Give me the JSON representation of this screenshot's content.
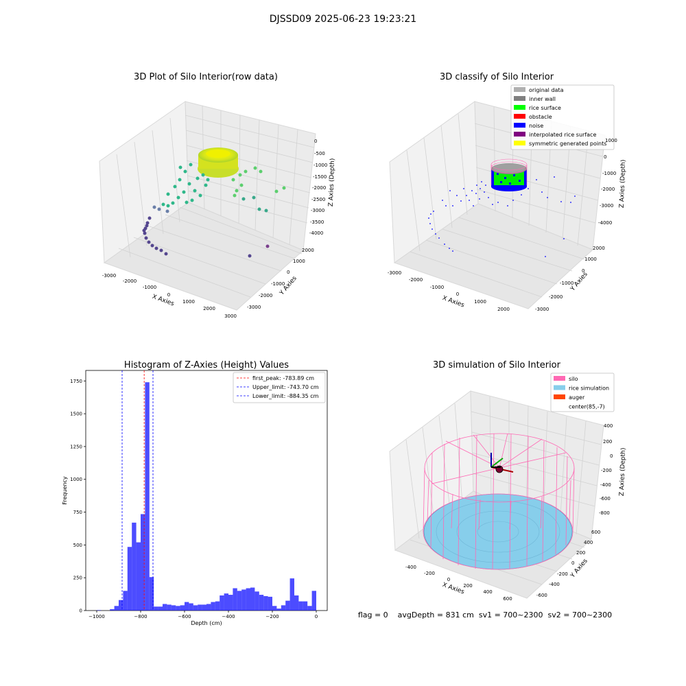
{
  "figure": {
    "suptitle": "DJSSD09 2025-06-23 19:23:21",
    "footer": "flag = 0    avgDepth = 831 cm  sv1 = 700~2300  sv2 = 700~2300"
  },
  "panels": {
    "raw": {
      "title": "3D Plot of Silo Interior(row data)",
      "xlabel": "X Axies",
      "ylabel": "Y Axies",
      "zlabel": "Z Axies (Depth)",
      "xticks": [
        "-3000",
        "-2000",
        "-1000",
        "0",
        "1000",
        "2000",
        "3000"
      ],
      "yticks": [
        "-3000",
        "-2000",
        "-1000",
        "0",
        "1000",
        "2000"
      ],
      "zticks": [
        "0",
        "-500",
        "-1000",
        "-1500",
        "-2000",
        "-2500",
        "-3000",
        "-3500",
        "-4000"
      ]
    },
    "classify": {
      "title": "3D classify of Silo Interior",
      "xlabel": "X Axies",
      "ylabel": "Y Axies",
      "zlabel": "Z Axies (Depth)",
      "xticks": [
        "-3000",
        "-2000",
        "-1000",
        "0",
        "1000",
        "2000"
      ],
      "yticks": [
        "-3000",
        "-2000",
        "-1000",
        "0",
        "1000",
        "2000"
      ],
      "zticks": [
        "1000",
        "0",
        "-1000",
        "-2000",
        "-3000",
        "-4000"
      ],
      "legend": [
        {
          "label": "original data",
          "color": "#b0b0b0"
        },
        {
          "label": "inner wall",
          "color": "#808080"
        },
        {
          "label": "rice surface",
          "color": "#00ff00"
        },
        {
          "label": "obstacle",
          "color": "#ff0000"
        },
        {
          "label": "noise",
          "color": "#0000ff"
        },
        {
          "label": "interpolated rice surface",
          "color": "#800080"
        },
        {
          "label": "symmetric generated points",
          "color": "#ffff00"
        }
      ]
    },
    "simulation": {
      "title": "3D simulation of Silo Interior",
      "xlabel": "X Axies",
      "ylabel": "Y Axies",
      "zlabel": "Z Axies (Depth)",
      "xticks": [
        "-400",
        "-200",
        "0",
        "200",
        "400",
        "600"
      ],
      "yticks": [
        "-600",
        "-400",
        "-200",
        "0",
        "200",
        "400",
        "600"
      ],
      "zticks": [
        "400",
        "200",
        "0",
        "-200",
        "-400",
        "-600",
        "-800"
      ],
      "legend": [
        {
          "label": "silo",
          "color": "#ff69b4"
        },
        {
          "label": "rice simulation",
          "color": "#87ceeb"
        },
        {
          "label": "auger",
          "color": "#ff4500"
        },
        {
          "label": "center(85,-7)",
          "color": ""
        }
      ]
    }
  },
  "chart_data": {
    "type": "bar",
    "title": "Histogram of Z-Axies (Height) Values",
    "xlabel": "Depth (cm)",
    "ylabel": "Frequency",
    "xlim": [
      -1050,
      50
    ],
    "ylim": [
      0,
      1830
    ],
    "xticks": [
      -1000,
      -800,
      -600,
      -400,
      -200,
      0
    ],
    "yticks": [
      0,
      250,
      500,
      750,
      1000,
      1250,
      1500,
      1750
    ],
    "bar_color": "#0000ff",
    "bins": [
      [
        -1000,
        -980,
        3
      ],
      [
        -980,
        -960,
        0
      ],
      [
        -960,
        -940,
        0
      ],
      [
        -940,
        -920,
        10
      ],
      [
        -920,
        -900,
        35
      ],
      [
        -900,
        -880,
        80
      ],
      [
        -880,
        -860,
        150
      ],
      [
        -860,
        -840,
        485
      ],
      [
        -840,
        -820,
        670
      ],
      [
        -820,
        -800,
        520
      ],
      [
        -800,
        -780,
        735
      ],
      [
        -780,
        -760,
        1740
      ],
      [
        -760,
        -740,
        255
      ],
      [
        -740,
        -720,
        30
      ],
      [
        -720,
        -700,
        30
      ],
      [
        -700,
        -680,
        50
      ],
      [
        -680,
        -660,
        45
      ],
      [
        -660,
        -640,
        40
      ],
      [
        -640,
        -620,
        35
      ],
      [
        -620,
        -600,
        40
      ],
      [
        -600,
        -580,
        65
      ],
      [
        -580,
        -560,
        55
      ],
      [
        -560,
        -540,
        40
      ],
      [
        -540,
        -520,
        45
      ],
      [
        -520,
        -500,
        45
      ],
      [
        -500,
        -480,
        50
      ],
      [
        -480,
        -460,
        65
      ],
      [
        -460,
        -440,
        70
      ],
      [
        -440,
        -420,
        115
      ],
      [
        -420,
        -400,
        130
      ],
      [
        -400,
        -380,
        120
      ],
      [
        -380,
        -360,
        170
      ],
      [
        -360,
        -340,
        150
      ],
      [
        -340,
        -320,
        160
      ],
      [
        -320,
        -300,
        170
      ],
      [
        -300,
        -280,
        175
      ],
      [
        -280,
        -260,
        145
      ],
      [
        -260,
        -240,
        120
      ],
      [
        -240,
        -220,
        110
      ],
      [
        -220,
        -200,
        105
      ],
      [
        -200,
        -180,
        35
      ],
      [
        -180,
        -160,
        15
      ],
      [
        -160,
        -140,
        40
      ],
      [
        -140,
        -120,
        75
      ],
      [
        -120,
        -100,
        245
      ],
      [
        -100,
        -80,
        115
      ],
      [
        -80,
        -60,
        70
      ],
      [
        -60,
        -40,
        70
      ],
      [
        -40,
        -20,
        35
      ],
      [
        -20,
        0,
        150
      ]
    ],
    "lines": [
      {
        "label": "first_peak: -783.89 cm",
        "x": -783.89,
        "color": "#ff0000"
      },
      {
        "label": "Upper_limit: -743.70 cm",
        "x": -743.7,
        "color": "#0000ff"
      },
      {
        "label": "Lower_limit: -884.35 cm",
        "x": -884.35,
        "color": "#0000ff"
      }
    ]
  }
}
